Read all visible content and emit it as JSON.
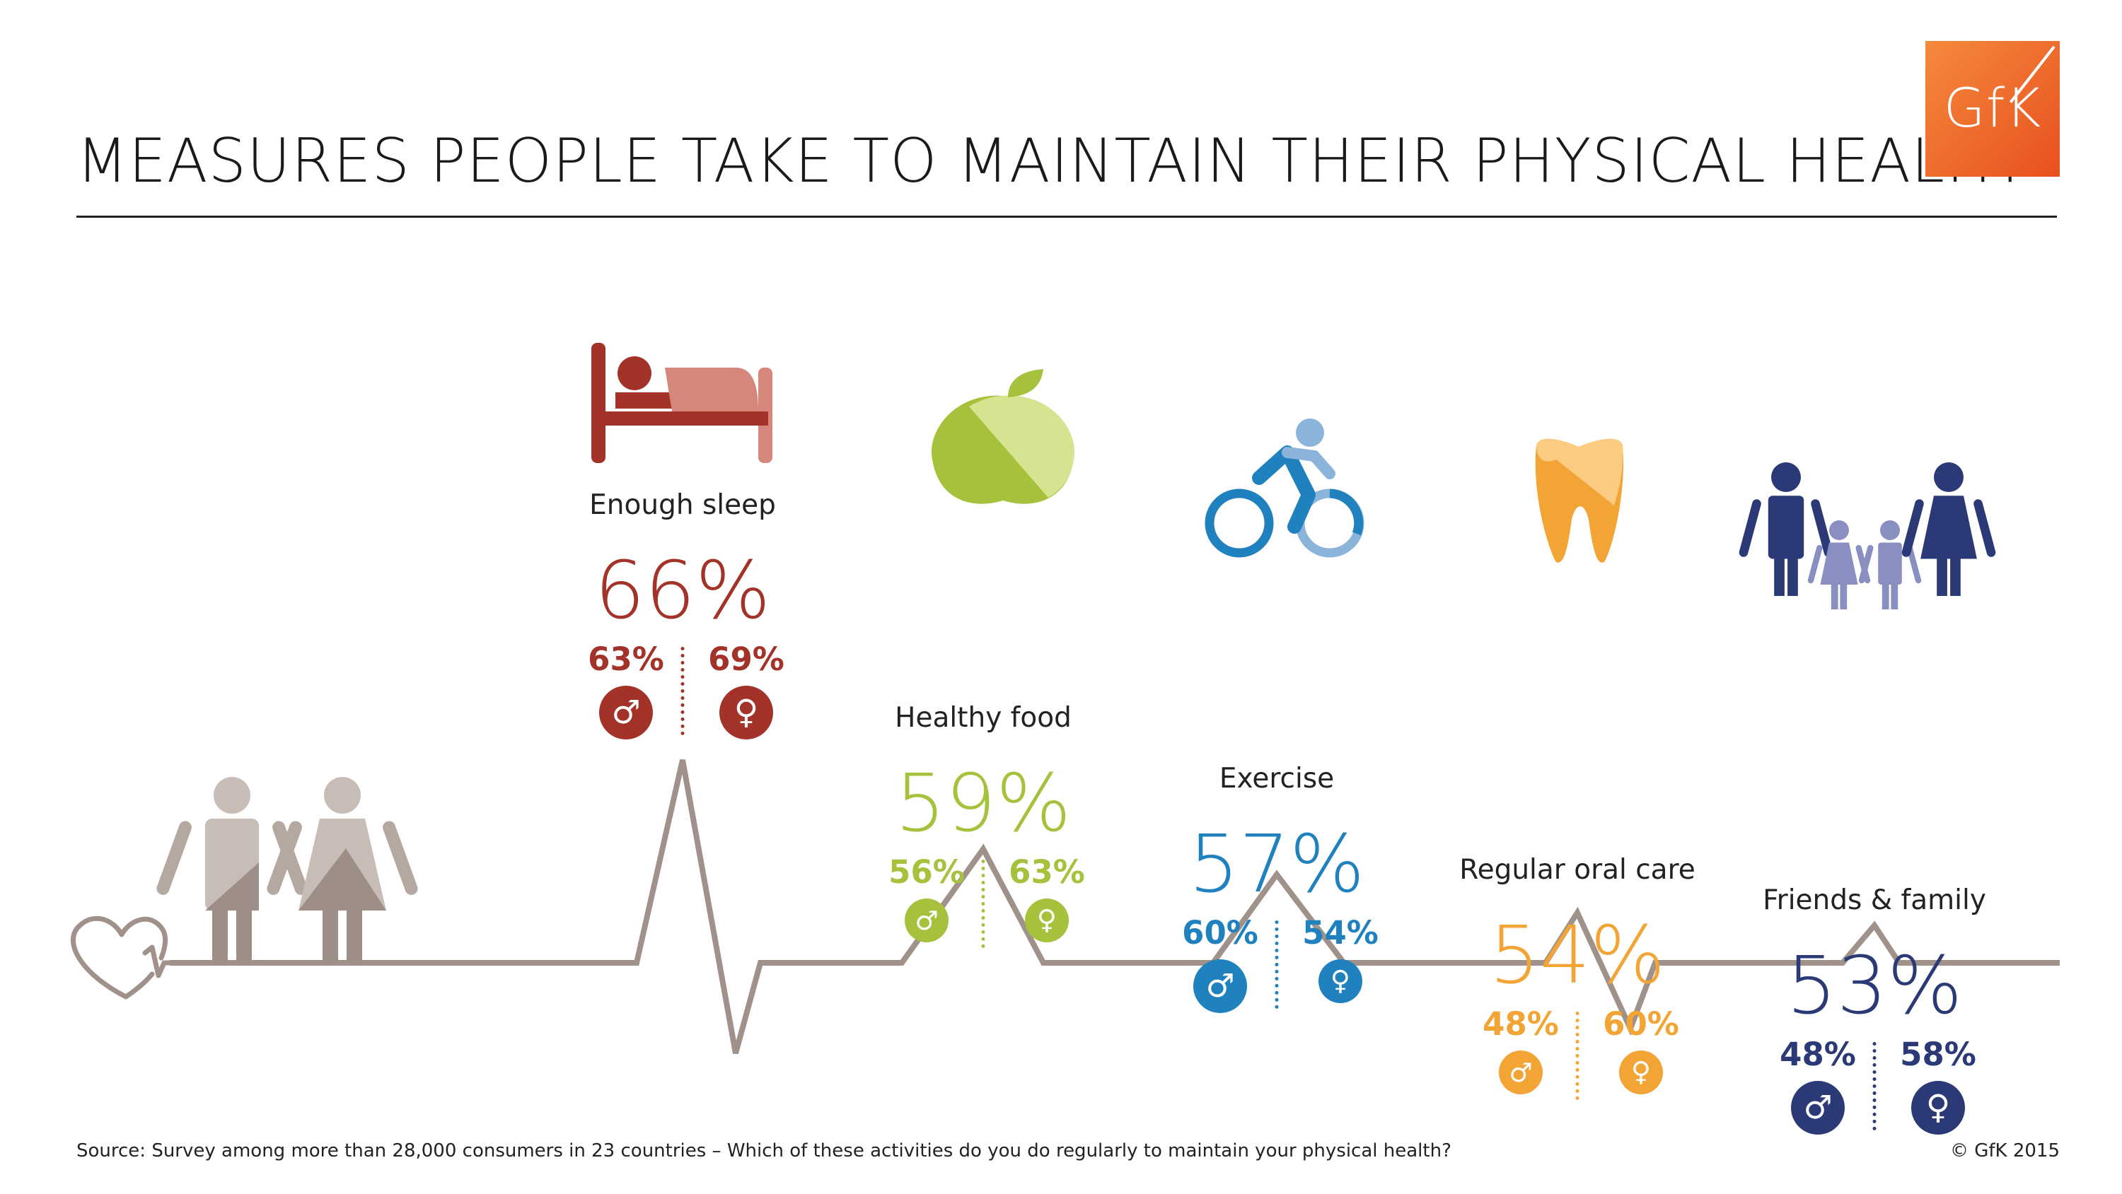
{
  "title": "MEASURES PEOPLE TAKE TO MAINTAIN THEIR PHYSICAL HEALTH",
  "logo": {
    "text": "GfK"
  },
  "source": "Source: Survey among more than 28,000 consumers in 23 countries – Which of these activities do you do regularly to maintain your physical health?",
  "copyright": "© GfK 2015",
  "symbols": {
    "male": "♂",
    "female": "♀"
  },
  "colors": {
    "sleep": "#a33328",
    "food": "#a6c23c",
    "exercise": "#1f82bf",
    "oral": "#f2a434",
    "family": "#2b3a76",
    "ecg": "#a0918a"
  },
  "chart_data": {
    "type": "bar",
    "categories": [
      "Enough sleep",
      "Healthy food",
      "Exercise",
      "Regular oral care",
      "Friends & family"
    ],
    "series": [
      {
        "name": "",
        "values": [
          66,
          59,
          57,
          54,
          53
        ],
        "labels": [
          "66%",
          "59%",
          "57%",
          "54%",
          "53%"
        ]
      },
      {
        "name": "",
        "values": [
          63,
          56,
          60,
          48,
          48
        ],
        "labels": [
          "63%",
          "56%",
          "60%",
          "48%",
          "48%"
        ]
      },
      {
        "name": "",
        "values": [
          69,
          63,
          54,
          60,
          58
        ],
        "labels": [
          "69%",
          "63%",
          "54%",
          "60%",
          "58%"
        ]
      }
    ],
    "title": "MEASURES PEOPLE TAKE TO MAINTAIN THEIR PHYSICAL HEALTH",
    "xlabel": "",
    "ylabel": "",
    "icons": [
      "bed-icon",
      "apple-icon",
      "cyclist-icon",
      "tooth-icon",
      "family-icon"
    ]
  }
}
